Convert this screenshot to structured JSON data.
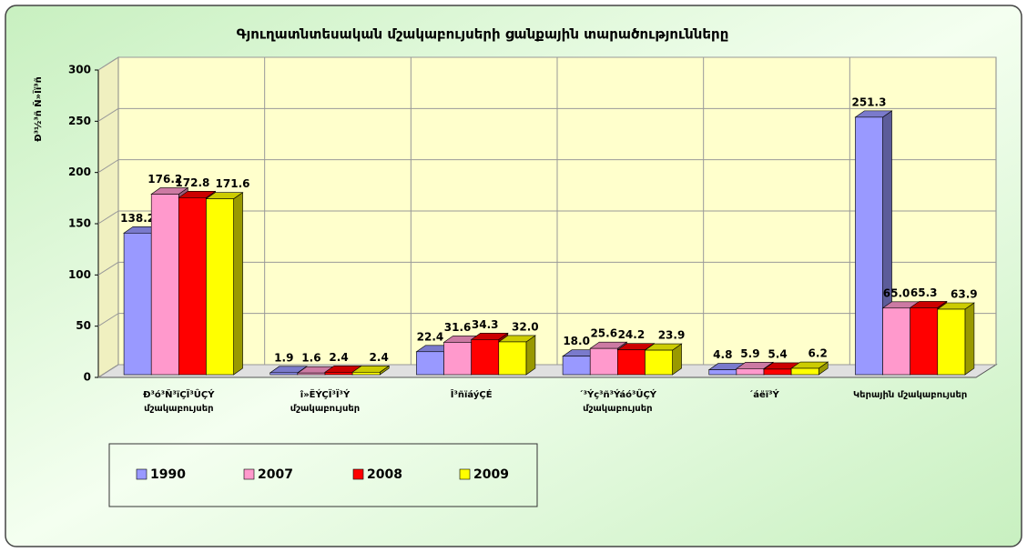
{
  "chart_data": {
    "type": "bar3d",
    "title": "Գյուղատնտեսական մշակաբույսերի  ցանքային տարածությունները",
    "y_label": "Ð³½³ñ Ñ»Ïï³ñ",
    "categories": [
      "Ð³ó³Ñ³ïÇÏ³ÛÇÝ\nմշակաբույսեր",
      "î»ËÝÇÏ³Ï³Ý\nմշակաբույսեր",
      "Î³ñïáýÇÉ",
      "´³Ýç³ñ³Ýáó³ÛÇÝ\nմշակաբույսեր",
      "´áëï³Ý",
      "Կերային մշակաբույսեր"
    ],
    "series": [
      {
        "name": "1990",
        "color": "#9999ff",
        "values": [
          138.2,
          1.9,
          22.4,
          18.0,
          4.8,
          251.3
        ],
        "value_labels": [
          "138.2",
          "1.9",
          "22.4",
          "18.0",
          "4.8",
          "251.3"
        ]
      },
      {
        "name": "2007",
        "color": "#ff99cc",
        "values": [
          176.2,
          1.6,
          31.6,
          25.6,
          5.9,
          65.0
        ],
        "value_labels": [
          "176.2",
          "1.6",
          "31.6",
          "25.6",
          "5.9",
          "65.0"
        ]
      },
      {
        "name": "2008",
        "color": "#ff0000",
        "values": [
          172.8,
          2.4,
          34.3,
          24.2,
          5.4,
          65.3
        ],
        "value_labels": [
          "172.8",
          "2.4",
          "34.3",
          "24.2",
          "5.4",
          "65.3"
        ]
      },
      {
        "name": "2009",
        "color": "#ffff00",
        "values": [
          171.6,
          2.4,
          32.0,
          23.9,
          6.2,
          63.9
        ],
        "value_labels": [
          "171.6",
          "2.4",
          "32.0",
          "23.9",
          "6.2",
          "63.9"
        ]
      }
    ],
    "ylim": [
      0,
      300
    ],
    "yticks": [
      0,
      50,
      100,
      150,
      200,
      250,
      300
    ],
    "grid": true
  }
}
